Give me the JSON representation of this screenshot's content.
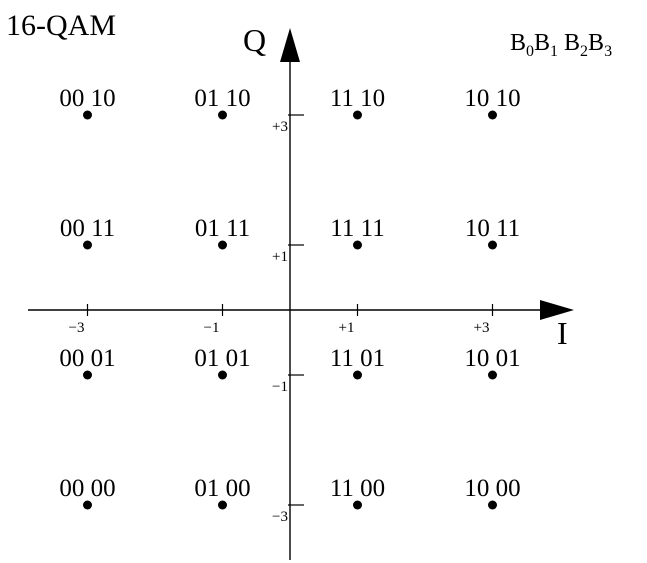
{
  "title": "16-QAM",
  "bit_order_label": {
    "parts": [
      "B",
      "0",
      "B",
      "1",
      " B",
      "2",
      "B",
      "3"
    ]
  },
  "axes": {
    "i_label": "I",
    "q_label": "Q"
  },
  "i_ticks": [
    {
      "value": -3,
      "label": "−3"
    },
    {
      "value": -1,
      "label": "−1"
    },
    {
      "value": 1,
      "label": "+1"
    },
    {
      "value": 3,
      "label": "+3"
    }
  ],
  "q_ticks": [
    {
      "value": 3,
      "label": "+3"
    },
    {
      "value": 1,
      "label": "+1"
    },
    {
      "value": -1,
      "label": "−1"
    },
    {
      "value": -3,
      "label": "−3"
    }
  ],
  "constellation": [
    {
      "i": -3,
      "q": 3,
      "bits": "00 10"
    },
    {
      "i": -1,
      "q": 3,
      "bits": "01 10"
    },
    {
      "i": 1,
      "q": 3,
      "bits": "11 10"
    },
    {
      "i": 3,
      "q": 3,
      "bits": "10 10"
    },
    {
      "i": -3,
      "q": 1,
      "bits": "00 11"
    },
    {
      "i": -1,
      "q": 1,
      "bits": "01 11"
    },
    {
      "i": 1,
      "q": 1,
      "bits": "11 11"
    },
    {
      "i": 3,
      "q": 1,
      "bits": "10 11"
    },
    {
      "i": -3,
      "q": -1,
      "bits": "00 01"
    },
    {
      "i": -1,
      "q": -1,
      "bits": "01 01"
    },
    {
      "i": 1,
      "q": -1,
      "bits": "11 01"
    },
    {
      "i": 3,
      "q": -1,
      "bits": "10 01"
    },
    {
      "i": -3,
      "q": -3,
      "bits": "00 00"
    },
    {
      "i": -1,
      "q": -3,
      "bits": "01 00"
    },
    {
      "i": 1,
      "q": -3,
      "bits": "11 00"
    },
    {
      "i": 3,
      "q": -3,
      "bits": "10 00"
    }
  ]
}
